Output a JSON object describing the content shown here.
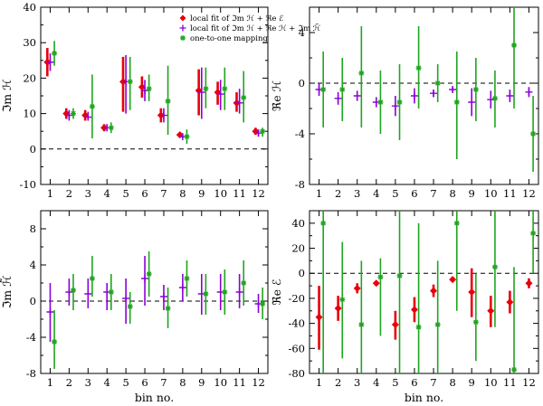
{
  "chart_data": [
    {
      "type": "scatter",
      "panel": "top-left",
      "ylabel": "ℑm ℋ",
      "xlabel": "",
      "xlim": [
        0.5,
        12.5
      ],
      "ylim": [
        -10,
        40
      ],
      "yticks": [
        -10,
        0,
        10,
        20,
        30,
        40
      ],
      "xticks": [
        1,
        2,
        3,
        4,
        5,
        6,
        7,
        8,
        9,
        10,
        11,
        12
      ],
      "zero_line": true,
      "legend": {
        "placement": "top-right",
        "entries": [
          {
            "series": "red",
            "label": "local fit of ℑm ℋ + ℜe ℰ"
          },
          {
            "series": "purple",
            "label": "local fit of ℑm ℋ + ℜe ℋ + ℑm ℋ̃"
          },
          {
            "series": "green",
            "label": "one-to-one mapping"
          }
        ]
      },
      "series": [
        {
          "key": "red",
          "marker": "diamond",
          "x_offset": -0.15,
          "points": [
            {
              "x": 1,
              "y": 24.5,
              "lo": 20.5,
              "hi": 28.5
            },
            {
              "x": 2,
              "y": 10,
              "lo": 8.5,
              "hi": 11.5
            },
            {
              "x": 3,
              "y": 9.5,
              "lo": 8,
              "hi": 11
            },
            {
              "x": 4,
              "y": 6,
              "lo": 5,
              "hi": 7
            },
            {
              "x": 5,
              "y": 19,
              "lo": 10.5,
              "hi": 26
            },
            {
              "x": 6,
              "y": 17.5,
              "lo": 14.5,
              "hi": 20.5
            },
            {
              "x": 7,
              "y": 9.5,
              "lo": 7.5,
              "hi": 11.5
            },
            {
              "x": 8,
              "y": 4,
              "lo": 3.5,
              "hi": 4.5
            },
            {
              "x": 9,
              "y": 16.5,
              "lo": 9.5,
              "hi": 22.5
            },
            {
              "x": 10,
              "y": 16,
              "lo": 12.5,
              "hi": 19
            },
            {
              "x": 11,
              "y": 13,
              "lo": 10.5,
              "hi": 16
            },
            {
              "x": 12,
              "y": 5,
              "lo": 4,
              "hi": 6
            }
          ]
        },
        {
          "key": "purple",
          "marker": "plus",
          "x_offset": 0.0,
          "points": [
            {
              "x": 1,
              "y": 24.5,
              "lo": 22,
              "hi": 27
            },
            {
              "x": 2,
              "y": 9.5,
              "lo": 8,
              "hi": 11
            },
            {
              "x": 3,
              "y": 9,
              "lo": 8,
              "hi": 10.5
            },
            {
              "x": 4,
              "y": 6,
              "lo": 5,
              "hi": 7
            },
            {
              "x": 5,
              "y": 19,
              "lo": 10,
              "hi": 26.5
            },
            {
              "x": 6,
              "y": 16.5,
              "lo": 13.5,
              "hi": 19.5
            },
            {
              "x": 7,
              "y": 9.5,
              "lo": 7.5,
              "hi": 11.5
            },
            {
              "x": 8,
              "y": 3.5,
              "lo": 3,
              "hi": 4
            },
            {
              "x": 9,
              "y": 16,
              "lo": 8.5,
              "hi": 23
            },
            {
              "x": 10,
              "y": 15.5,
              "lo": 11,
              "hi": 19.5
            },
            {
              "x": 11,
              "y": 13,
              "lo": 10,
              "hi": 17
            },
            {
              "x": 12,
              "y": 4.5,
              "lo": 3.5,
              "hi": 5.5
            }
          ]
        },
        {
          "key": "green",
          "marker": "star",
          "x_offset": 0.22,
          "points": [
            {
              "x": 1,
              "y": 27,
              "lo": 23.5,
              "hi": 30.5
            },
            {
              "x": 2,
              "y": 10,
              "lo": 8.5,
              "hi": 11.5
            },
            {
              "x": 3,
              "y": 12,
              "lo": 3,
              "hi": 21
            },
            {
              "x": 4,
              "y": 6,
              "lo": 4.5,
              "hi": 7.5
            },
            {
              "x": 5,
              "y": 19,
              "lo": 11,
              "hi": 26
            },
            {
              "x": 6,
              "y": 17,
              "lo": 13.5,
              "hi": 21
            },
            {
              "x": 7,
              "y": 13.5,
              "lo": 4,
              "hi": 23.5
            },
            {
              "x": 8,
              "y": 3.5,
              "lo": 1.5,
              "hi": 5.5
            },
            {
              "x": 9,
              "y": 17,
              "lo": 11.5,
              "hi": 23
            },
            {
              "x": 10,
              "y": 17,
              "lo": 11,
              "hi": 23
            },
            {
              "x": 11,
              "y": 14.5,
              "lo": 7.5,
              "hi": 22
            },
            {
              "x": 12,
              "y": 5,
              "lo": 3.5,
              "hi": 6
            }
          ]
        }
      ]
    },
    {
      "type": "scatter",
      "panel": "top-right",
      "ylabel": "ℜe ℋ",
      "xlabel": "",
      "xlim": [
        0.5,
        12.5
      ],
      "ylim": [
        -8,
        6
      ],
      "yticks": [
        -8,
        -4,
        0,
        4
      ],
      "xticks": [
        1,
        2,
        3,
        4,
        5,
        6,
        7,
        8,
        9,
        10,
        11,
        12
      ],
      "zero_line": true,
      "series": [
        {
          "key": "purple",
          "marker": "plus",
          "x_offset": 0.0,
          "points": [
            {
              "x": 1,
              "y": -0.5,
              "lo": -1,
              "hi": 0
            },
            {
              "x": 2,
              "y": -1.2,
              "lo": -1.7,
              "hi": -0.7
            },
            {
              "x": 3,
              "y": -1.0,
              "lo": -1.4,
              "hi": -0.6
            },
            {
              "x": 4,
              "y": -1.5,
              "lo": -1.9,
              "hi": -1.1
            },
            {
              "x": 5,
              "y": -1.8,
              "lo": -2.6,
              "hi": -1.0
            },
            {
              "x": 6,
              "y": -1.0,
              "lo": -1.6,
              "hi": -0.4
            },
            {
              "x": 7,
              "y": -0.8,
              "lo": -1.1,
              "hi": -0.5
            },
            {
              "x": 8,
              "y": -0.5,
              "lo": -0.7,
              "hi": -0.3
            },
            {
              "x": 9,
              "y": -1.5,
              "lo": -2.6,
              "hi": -0.4
            },
            {
              "x": 10,
              "y": -1.3,
              "lo": -2.0,
              "hi": -0.6
            },
            {
              "x": 11,
              "y": -1.0,
              "lo": -1.5,
              "hi": -0.5
            },
            {
              "x": 12,
              "y": -0.7,
              "lo": -1.1,
              "hi": -0.3
            }
          ]
        },
        {
          "key": "green",
          "marker": "star",
          "x_offset": 0.22,
          "points": [
            {
              "x": 1,
              "y": -0.5,
              "lo": -3.5,
              "hi": 2.5
            },
            {
              "x": 2,
              "y": -0.5,
              "lo": -3.0,
              "hi": 2.0
            },
            {
              "x": 3,
              "y": 0.8,
              "lo": -3.5,
              "hi": 4.5
            },
            {
              "x": 4,
              "y": -1.5,
              "lo": -4.0,
              "hi": 1.0
            },
            {
              "x": 5,
              "y": -1.5,
              "lo": -4.5,
              "hi": 1.5
            },
            {
              "x": 6,
              "y": 1.2,
              "lo": -2.0,
              "hi": 4.5
            },
            {
              "x": 7,
              "y": 0,
              "lo": -1.5,
              "hi": 1.5
            },
            {
              "x": 8,
              "y": -1.5,
              "lo": -6.0,
              "hi": 2.5
            },
            {
              "x": 9,
              "y": -0.5,
              "lo": -3.0,
              "hi": 2.0
            },
            {
              "x": 10,
              "y": -1.2,
              "lo": -3.5,
              "hi": 1.0
            },
            {
              "x": 11,
              "y": 3.0,
              "lo": -2.0,
              "hi": 8.0
            },
            {
              "x": 12,
              "y": -4.0,
              "lo": -7.0,
              "hi": -1.0
            }
          ]
        }
      ]
    },
    {
      "type": "scatter",
      "panel": "bottom-left",
      "ylabel": "ℑm ℋ̃",
      "xlabel": "bin no.",
      "xlim": [
        0.5,
        12.5
      ],
      "ylim": [
        -8,
        10
      ],
      "yticks": [
        -8,
        -4,
        0,
        4,
        8
      ],
      "xticks": [
        1,
        2,
        3,
        4,
        5,
        6,
        7,
        8,
        9,
        10,
        11,
        12
      ],
      "zero_line": true,
      "series": [
        {
          "key": "purple",
          "marker": "plus",
          "x_offset": 0.0,
          "points": [
            {
              "x": 1,
              "y": -1.2,
              "lo": -4.5,
              "hi": 2.0
            },
            {
              "x": 2,
              "y": 1.0,
              "lo": -0.5,
              "hi": 2.5
            },
            {
              "x": 3,
              "y": 0.8,
              "lo": -0.8,
              "hi": 2.5
            },
            {
              "x": 4,
              "y": 1.0,
              "lo": -1.0,
              "hi": 2.0
            },
            {
              "x": 5,
              "y": 0.3,
              "lo": -2.5,
              "hi": 2.5
            },
            {
              "x": 6,
              "y": 2.5,
              "lo": -0.5,
              "hi": 5.0
            },
            {
              "x": 7,
              "y": 0.5,
              "lo": -1.0,
              "hi": 1.8
            },
            {
              "x": 8,
              "y": 1.5,
              "lo": 0.0,
              "hi": 3.0
            },
            {
              "x": 9,
              "y": 0.8,
              "lo": -1.5,
              "hi": 3.0
            },
            {
              "x": 10,
              "y": 1.0,
              "lo": -1.0,
              "hi": 3.0
            },
            {
              "x": 11,
              "y": 1.0,
              "lo": -0.8,
              "hi": 3.0
            },
            {
              "x": 12,
              "y": -0.3,
              "lo": -1.3,
              "hi": 0.8
            }
          ]
        },
        {
          "key": "green",
          "marker": "star",
          "x_offset": 0.22,
          "points": [
            {
              "x": 1,
              "y": -4.5,
              "lo": -7.5,
              "hi": -1.0
            },
            {
              "x": 2,
              "y": 1.2,
              "lo": -1.0,
              "hi": 3.0
            },
            {
              "x": 3,
              "y": 2.5,
              "lo": 0.5,
              "hi": 5.0
            },
            {
              "x": 4,
              "y": 1.0,
              "lo": -1.0,
              "hi": 3.0
            },
            {
              "x": 5,
              "y": -0.6,
              "lo": -2.5,
              "hi": 1.0
            },
            {
              "x": 6,
              "y": 3.0,
              "lo": 0.5,
              "hi": 5.5
            },
            {
              "x": 7,
              "y": -0.8,
              "lo": -3.0,
              "hi": 1.5
            },
            {
              "x": 8,
              "y": 2.5,
              "lo": 0.5,
              "hi": 4.5
            },
            {
              "x": 9,
              "y": 0.8,
              "lo": -1.5,
              "hi": 3.0
            },
            {
              "x": 10,
              "y": 1.0,
              "lo": -1.5,
              "hi": 3.5
            },
            {
              "x": 11,
              "y": 2.0,
              "lo": -0.5,
              "hi": 4.5
            },
            {
              "x": 12,
              "y": -0.3,
              "lo": -2.0,
              "hi": 1.5
            }
          ]
        }
      ]
    },
    {
      "type": "scatter",
      "panel": "bottom-right",
      "ylabel": "ℜe ℰ",
      "xlabel": "bin no.",
      "xlim": [
        0.5,
        12.5
      ],
      "ylim": [
        -80,
        50
      ],
      "yticks": [
        -80,
        -60,
        -40,
        -20,
        0,
        20,
        40
      ],
      "xticks": [
        1,
        2,
        3,
        4,
        5,
        6,
        7,
        8,
        9,
        10,
        11,
        12
      ],
      "zero_line": true,
      "series": [
        {
          "key": "red",
          "marker": "diamond",
          "x_offset": 0.0,
          "points": [
            {
              "x": 1,
              "y": -35,
              "lo": -61,
              "hi": -10
            },
            {
              "x": 2,
              "y": -28,
              "lo": -38,
              "hi": -18
            },
            {
              "x": 3,
              "y": -12,
              "lo": -16,
              "hi": -8
            },
            {
              "x": 4,
              "y": -8,
              "lo": -10,
              "hi": -6
            },
            {
              "x": 5,
              "y": -41,
              "lo": -53,
              "hi": -30
            },
            {
              "x": 6,
              "y": -29,
              "lo": -39,
              "hi": -19
            },
            {
              "x": 7,
              "y": -14,
              "lo": -19,
              "hi": -9
            },
            {
              "x": 8,
              "y": -5,
              "lo": -7,
              "hi": -3
            },
            {
              "x": 9,
              "y": -15,
              "lo": -35,
              "hi": 4
            },
            {
              "x": 10,
              "y": -30,
              "lo": -43,
              "hi": -18
            },
            {
              "x": 11,
              "y": -23,
              "lo": -32,
              "hi": -14
            },
            {
              "x": 12,
              "y": -8,
              "lo": -12,
              "hi": -4
            }
          ]
        },
        {
          "key": "green",
          "marker": "star",
          "x_offset": 0.22,
          "points": [
            {
              "x": 1,
              "y": 40,
              "lo": -80,
              "hi": 50
            },
            {
              "x": 2,
              "y": -21,
              "lo": -68,
              "hi": 25
            },
            {
              "x": 3,
              "y": -41,
              "lo": -80,
              "hi": 10
            },
            {
              "x": 4,
              "y": -3,
              "lo": -50,
              "hi": 12
            },
            {
              "x": 5,
              "y": -2,
              "lo": -80,
              "hi": 50
            },
            {
              "x": 6,
              "y": -43,
              "lo": -80,
              "hi": 40
            },
            {
              "x": 7,
              "y": -41,
              "lo": -80,
              "hi": 10
            },
            {
              "x": 8,
              "y": 40,
              "lo": -30,
              "hi": 50
            },
            {
              "x": 9,
              "y": -39,
              "lo": -70,
              "hi": 0
            },
            {
              "x": 10,
              "y": 5,
              "lo": -43,
              "hi": 50
            },
            {
              "x": 11,
              "y": -77,
              "lo": -80,
              "hi": 5
            },
            {
              "x": 12,
              "y": 32,
              "lo": 0,
              "hi": 50
            }
          ]
        }
      ]
    }
  ],
  "colors": {
    "red": "#e8000b",
    "purple": "#8b00d8",
    "green": "#1fa51f",
    "axis": "#000000"
  }
}
